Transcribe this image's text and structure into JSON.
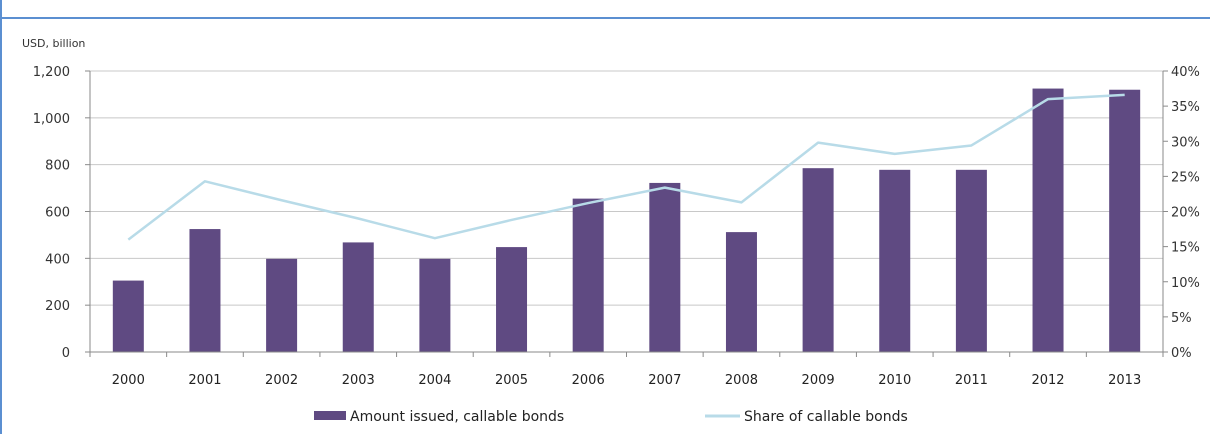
{
  "chart_data": {
    "type": "bar",
    "title": "",
    "y_unit_label": "USD, billion",
    "categories": [
      "2000",
      "2001",
      "2002",
      "2003",
      "2004",
      "2005",
      "2006",
      "2007",
      "2008",
      "2009",
      "2010",
      "2011",
      "2012",
      "2013"
    ],
    "series": [
      {
        "name": "Amount issued, callable bonds",
        "kind": "bar",
        "axis": "left",
        "color": "#5f4a82",
        "values": [
          305,
          525,
          398,
          468,
          398,
          448,
          655,
          722,
          512,
          785,
          778,
          778,
          1125,
          1120
        ]
      },
      {
        "name": "Share of callable bonds",
        "kind": "line",
        "axis": "right",
        "color": "#b8dbe8",
        "values": [
          16.0,
          24.3,
          21.6,
          19.0,
          16.2,
          18.8,
          21.2,
          23.4,
          21.3,
          29.8,
          28.2,
          29.4,
          36.0,
          36.6
        ]
      }
    ],
    "y_left": {
      "ylim": [
        0,
        1200
      ],
      "ticks": [
        0,
        200,
        400,
        600,
        800,
        1000,
        1200
      ],
      "tick_labels": [
        "0",
        "200",
        "400",
        "600",
        "800",
        "1,000",
        "1,200"
      ]
    },
    "y_right": {
      "ylim": [
        0,
        40
      ],
      "ticks": [
        0,
        5,
        10,
        15,
        20,
        25,
        30,
        35,
        40
      ],
      "tick_labels": [
        "0%",
        "5%",
        "10%",
        "15%",
        "20%",
        "25%",
        "30%",
        "35%",
        "40%"
      ]
    },
    "grid": true,
    "legend_position": "bottom"
  }
}
